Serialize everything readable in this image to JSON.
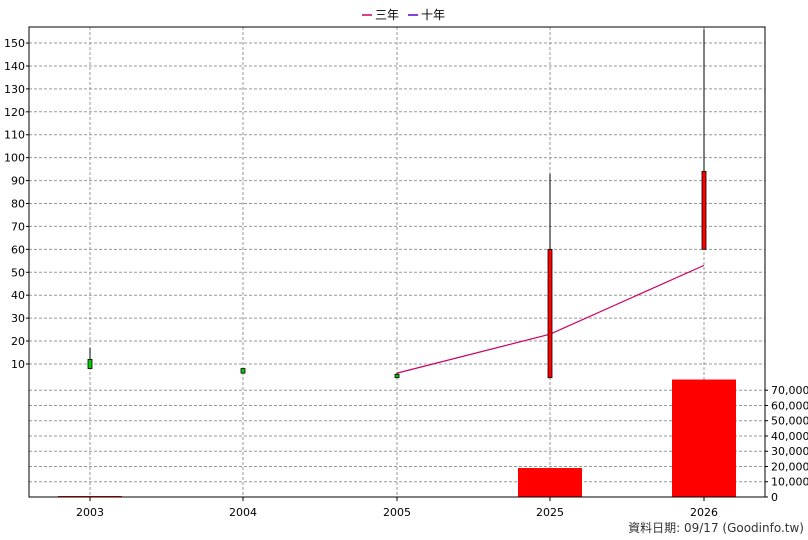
{
  "chart_data": {
    "type": "candlestick",
    "legend": [
      {
        "name": "三年",
        "color": "#cc0066"
      },
      {
        "name": "十年",
        "color": "#6600cc"
      }
    ],
    "categories": [
      "2003",
      "2004",
      "2005",
      "2025",
      "2026"
    ],
    "price_axis": {
      "ylim": [
        3,
        157
      ],
      "ticks": [
        10,
        20,
        30,
        40,
        50,
        60,
        70,
        80,
        90,
        100,
        110,
        120,
        130,
        140,
        150
      ]
    },
    "volume_axis": {
      "ylim": [
        0,
        78000
      ],
      "ticks": [
        0,
        10000,
        20000,
        30000,
        40000,
        50000,
        60000,
        70000
      ],
      "tick_labels": [
        "0",
        "10,000",
        "20,000",
        "30,000",
        "40,000",
        "50,000",
        "60,000",
        "70,000"
      ]
    },
    "candles": [
      {
        "open": 8,
        "close": 12,
        "high": 17,
        "low": 8,
        "color": "#00cc00"
      },
      {
        "open": 6,
        "close": 8,
        "high": 8,
        "low": 6,
        "color": "#00cc00"
      },
      {
        "open": 4,
        "close": 5.5,
        "high": 6,
        "low": 4,
        "color": "#00cc00"
      },
      {
        "open": 60,
        "close": 4,
        "high": 93,
        "low": 4,
        "color": "#ff0000"
      },
      {
        "open": 94,
        "close": 60,
        "high": 156,
        "low": 60,
        "color": "#ff0000"
      }
    ],
    "three_year_line": [
      null,
      null,
      6,
      23,
      53
    ],
    "volume": [
      80,
      0,
      0,
      19000,
      77000
    ],
    "volume_color": "#ff0000",
    "grid": true,
    "legend_position": "top-center"
  },
  "footer": {
    "text": "資料日期: 09/17  (Goodinfo.tw)"
  }
}
